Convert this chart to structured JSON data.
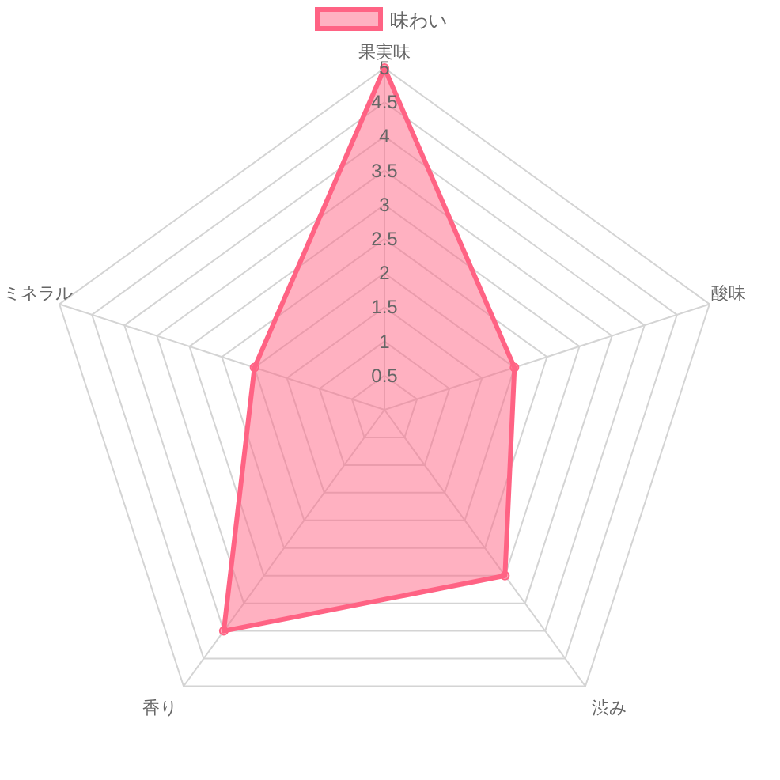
{
  "chart_data": {
    "type": "radar",
    "categories": [
      "果実味",
      "酸味",
      "渋み",
      "香り",
      "ミネラル"
    ],
    "series": [
      {
        "name": "味わい",
        "color": "#ff6384",
        "values": [
          5,
          2,
          3,
          4,
          2
        ]
      }
    ],
    "ylim": [
      0,
      5
    ],
    "yticks": [
      0.5,
      1,
      1.5,
      2,
      2.5,
      3,
      3.5,
      4,
      4.5,
      5
    ],
    "grid": true,
    "legend": "top",
    "marker": "circle"
  }
}
